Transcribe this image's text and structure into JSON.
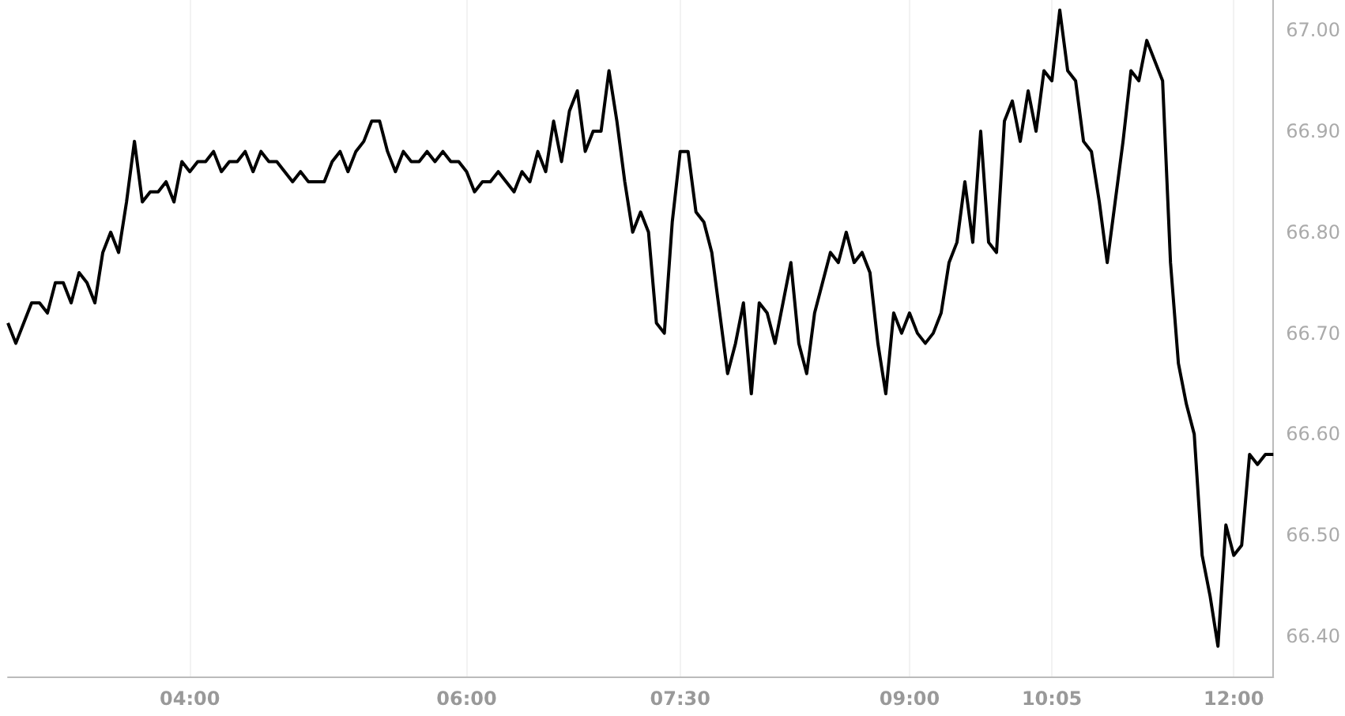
{
  "chart_data": {
    "type": "line",
    "categories": [
      null,
      null,
      null,
      null,
      null,
      null,
      null,
      null,
      null,
      null,
      null,
      null,
      null,
      null,
      null,
      null,
      null,
      null,
      null,
      null,
      null,
      null,
      null,
      "04:00",
      null,
      null,
      null,
      null,
      null,
      null,
      null,
      null,
      null,
      null,
      null,
      null,
      null,
      null,
      null,
      null,
      null,
      null,
      null,
      null,
      null,
      null,
      null,
      null,
      null,
      null,
      null,
      null,
      null,
      null,
      null,
      null,
      null,
      null,
      "06:00",
      null,
      null,
      null,
      null,
      null,
      null,
      null,
      null,
      null,
      null,
      null,
      null,
      null,
      null,
      null,
      null,
      null,
      null,
      null,
      null,
      null,
      null,
      null,
      null,
      null,
      null,
      "07:30",
      null,
      null,
      null,
      null,
      null,
      null,
      null,
      null,
      null,
      null,
      null,
      null,
      null,
      null,
      null,
      null,
      null,
      null,
      null,
      null,
      null,
      null,
      null,
      null,
      null,
      null,
      null,
      null,
      "09:00",
      null,
      null,
      null,
      null,
      null,
      null,
      null,
      null,
      null,
      null,
      null,
      null,
      null,
      null,
      null,
      null,
      null,
      "10:05",
      null,
      null,
      null,
      null,
      null,
      null,
      null,
      null,
      null,
      null,
      null,
      null,
      null,
      null,
      null,
      null,
      null,
      null,
      null,
      null,
      null,
      null,
      "12:00",
      null,
      null,
      null,
      null,
      null
    ],
    "series": [
      {
        "color": "#000000",
        "values": [
          66.71,
          66.69,
          66.71,
          66.73,
          66.73,
          66.72,
          66.75,
          66.75,
          66.73,
          66.76,
          66.75,
          66.73,
          66.78,
          66.8,
          66.78,
          66.83,
          66.89,
          66.83,
          66.84,
          66.84,
          66.85,
          66.83,
          66.87,
          66.86,
          66.87,
          66.87,
          66.88,
          66.86,
          66.87,
          66.87,
          66.88,
          66.86,
          66.88,
          66.87,
          66.87,
          66.86,
          66.85,
          66.86,
          66.85,
          66.85,
          66.85,
          66.87,
          66.88,
          66.86,
          66.88,
          66.89,
          66.91,
          66.91,
          66.88,
          66.86,
          66.88,
          66.87,
          66.87,
          66.88,
          66.87,
          66.88,
          66.87,
          66.87,
          66.86,
          66.84,
          66.85,
          66.85,
          66.86,
          66.85,
          66.84,
          66.86,
          66.85,
          66.88,
          66.86,
          66.91,
          66.87,
          66.92,
          66.94,
          66.88,
          66.9,
          66.9,
          66.96,
          66.91,
          66.85,
          66.8,
          66.82,
          66.8,
          66.71,
          66.7,
          66.81,
          66.88,
          66.88,
          66.82,
          66.81,
          66.78,
          66.72,
          66.66,
          66.69,
          66.73,
          66.64,
          66.73,
          66.72,
          66.69,
          66.73,
          66.77,
          66.69,
          66.66,
          66.72,
          66.75,
          66.78,
          66.77,
          66.8,
          66.77,
          66.78,
          66.76,
          66.69,
          66.64,
          66.72,
          66.7,
          66.72,
          66.7,
          66.69,
          66.7,
          66.72,
          66.77,
          66.79,
          66.85,
          66.79,
          66.9,
          66.79,
          66.78,
          66.91,
          66.93,
          66.89,
          66.94,
          66.9,
          66.96,
          66.95,
          67.02,
          66.96,
          66.95,
          66.89,
          66.88,
          66.83,
          66.77,
          66.83,
          66.89,
          66.96,
          66.95,
          66.99,
          66.97,
          66.95,
          66.77,
          66.67,
          66.63,
          66.6,
          66.48,
          66.44,
          66.39,
          66.51,
          66.48,
          66.49,
          66.58,
          66.57,
          66.58,
          66.58
        ]
      }
    ],
    "ylim": [
      66.36,
      67.03
    ],
    "yticks": [
      {
        "value": 66.4,
        "label": "66.40"
      },
      {
        "value": 66.5,
        "label": "66.50"
      },
      {
        "value": 66.6,
        "label": "66.60"
      },
      {
        "value": 66.7,
        "label": "66.70"
      },
      {
        "value": 66.8,
        "label": "66.80"
      },
      {
        "value": 66.9,
        "label": "66.90"
      },
      {
        "value": 67,
        "label": "67.00"
      }
    ],
    "grid": "x",
    "marker": "none",
    "line_style": "solid"
  }
}
